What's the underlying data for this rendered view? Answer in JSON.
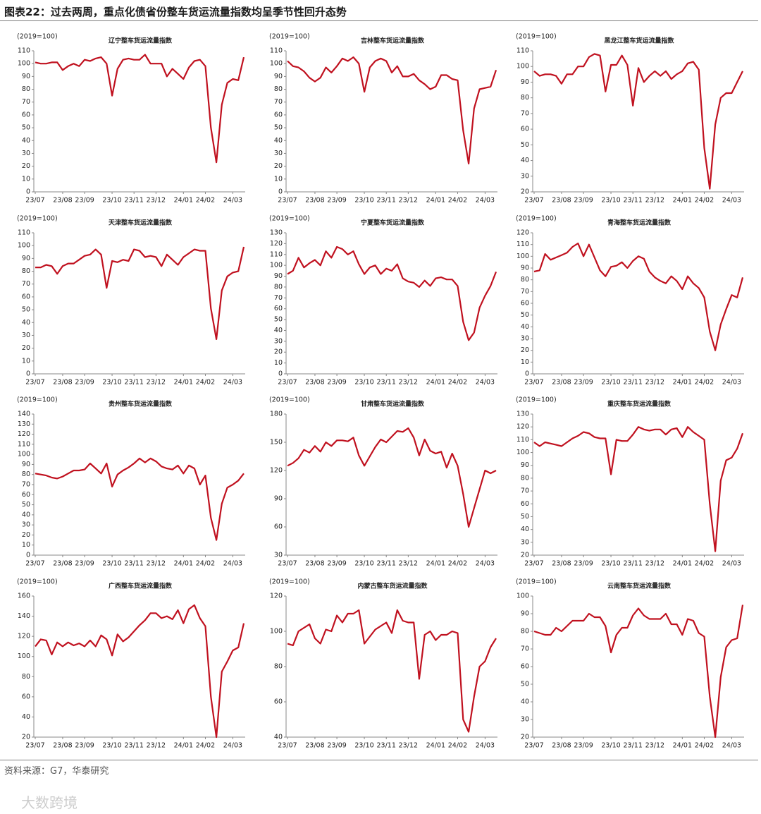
{
  "header": {
    "title": "图表22：过去两周，重点化债省份整车货运流量指数均呈季节性回升态势"
  },
  "footer": {
    "source": "资料来源：G7，华泰研究",
    "watermark": "大数跨境"
  },
  "chart_data": [
    {
      "type": "line",
      "title": "辽宁整车货运流量指数",
      "unit_label": "(2019=100)",
      "color": "#c0111f",
      "categories": [
        "23/07",
        null,
        null,
        null,
        null,
        "23/08",
        null,
        null,
        null,
        "23/09",
        null,
        null,
        null,
        null,
        "23/10",
        null,
        null,
        null,
        "23/11",
        null,
        null,
        null,
        "23/12",
        null,
        null,
        null,
        null,
        "24/01",
        null,
        null,
        null,
        "24/02",
        null,
        null,
        null,
        null,
        "24/03",
        null,
        null
      ],
      "values": [
        101,
        100,
        100,
        101,
        101,
        95,
        98,
        100,
        98,
        103,
        102,
        104,
        105,
        100,
        75,
        96,
        103,
        104,
        103,
        103,
        107,
        100,
        100,
        100,
        90,
        96,
        92,
        88,
        97,
        102,
        103,
        98,
        50,
        23,
        68,
        85,
        88,
        87,
        105
      ],
      "ylim": [
        0,
        110
      ],
      "yticks": [
        0,
        10,
        20,
        30,
        40,
        50,
        60,
        70,
        80,
        90,
        100,
        110
      ]
    },
    {
      "type": "line",
      "title": "吉林整车货运流量指数",
      "unit_label": "(2019=100)",
      "color": "#c0111f",
      "categories": [
        "23/07",
        null,
        null,
        null,
        null,
        "23/08",
        null,
        null,
        null,
        "23/09",
        null,
        null,
        null,
        null,
        "23/10",
        null,
        null,
        null,
        "23/11",
        null,
        null,
        null,
        "23/12",
        null,
        null,
        null,
        null,
        "24/01",
        null,
        null,
        null,
        "24/02",
        null,
        null,
        null,
        null,
        "24/03",
        null,
        null
      ],
      "values": [
        102,
        98,
        97,
        94,
        89,
        86,
        89,
        97,
        93,
        98,
        104,
        102,
        105,
        100,
        78,
        97,
        102,
        104,
        102,
        93,
        98,
        90,
        90,
        92,
        87,
        84,
        80,
        82,
        91,
        91,
        88,
        87,
        48,
        22,
        65,
        80,
        81,
        82,
        95
      ],
      "ylim": [
        0,
        110
      ],
      "yticks": [
        0,
        10,
        20,
        30,
        40,
        50,
        60,
        70,
        80,
        90,
        100,
        110
      ]
    },
    {
      "type": "line",
      "title": "黑龙江整车货运流量指数",
      "unit_label": "(2019=100)",
      "color": "#c0111f",
      "categories": [
        "23/07",
        null,
        null,
        null,
        null,
        "23/08",
        null,
        null,
        null,
        "23/09",
        null,
        null,
        null,
        null,
        "23/10",
        null,
        null,
        null,
        "23/11",
        null,
        null,
        null,
        "23/12",
        null,
        null,
        null,
        null,
        "24/01",
        null,
        null,
        null,
        "24/02",
        null,
        null,
        null,
        null,
        "24/03",
        null,
        null
      ],
      "values": [
        97,
        94,
        95,
        95,
        94,
        89,
        95,
        95,
        100,
        100,
        106,
        108,
        107,
        84,
        101,
        101,
        107,
        101,
        75,
        99,
        90,
        94,
        97,
        94,
        97,
        92,
        95,
        97,
        102,
        103,
        98,
        48,
        22,
        63,
        80,
        83,
        83,
        90,
        97
      ],
      "ylim": [
        20,
        110
      ],
      "yticks": [
        20,
        30,
        40,
        50,
        60,
        70,
        80,
        90,
        100,
        110
      ]
    },
    {
      "type": "line",
      "title": "天津整车货运流量指数",
      "unit_label": "(2019=100)",
      "color": "#c0111f",
      "categories": [
        "23/07",
        null,
        null,
        null,
        null,
        "23/08",
        null,
        null,
        null,
        "23/09",
        null,
        null,
        null,
        null,
        "23/10",
        null,
        null,
        null,
        "23/11",
        null,
        null,
        null,
        "23/12",
        null,
        null,
        null,
        null,
        "24/01",
        null,
        null,
        null,
        "24/02",
        null,
        null,
        null,
        null,
        "24/03",
        null,
        null
      ],
      "values": [
        83,
        83,
        85,
        84,
        78,
        84,
        86,
        86,
        89,
        92,
        93,
        97,
        93,
        67,
        88,
        87,
        89,
        88,
        97,
        96,
        91,
        92,
        91,
        84,
        93,
        89,
        85,
        91,
        94,
        97,
        96,
        96,
        51,
        27,
        65,
        76,
        79,
        80,
        99
      ],
      "ylim": [
        0,
        110
      ],
      "yticks": [
        0,
        10,
        20,
        30,
        40,
        50,
        60,
        70,
        80,
        90,
        100,
        110
      ]
    },
    {
      "type": "line",
      "title": "宁夏整车货运流量指数",
      "unit_label": "(2019=100)",
      "color": "#c0111f",
      "categories": [
        "23/07",
        null,
        null,
        null,
        null,
        "23/08",
        null,
        null,
        null,
        "23/09",
        null,
        null,
        null,
        null,
        "23/10",
        null,
        null,
        null,
        "23/11",
        null,
        null,
        null,
        "23/12",
        null,
        null,
        null,
        null,
        "24/01",
        null,
        null,
        null,
        "24/02",
        null,
        null,
        null,
        null,
        "24/03",
        null,
        null
      ],
      "values": [
        92,
        95,
        107,
        98,
        102,
        105,
        100,
        113,
        107,
        117,
        115,
        110,
        113,
        101,
        92,
        98,
        100,
        92,
        97,
        95,
        101,
        88,
        85,
        84,
        80,
        86,
        81,
        88,
        89,
        87,
        87,
        81,
        48,
        31,
        38,
        61,
        72,
        81,
        94
      ],
      "ylim": [
        0,
        130
      ],
      "yticks": [
        0,
        10,
        20,
        30,
        40,
        50,
        60,
        70,
        80,
        90,
        100,
        110,
        120,
        130
      ]
    },
    {
      "type": "line",
      "title": "青海整车货运流量指数",
      "unit_label": "(2019=100)",
      "color": "#c0111f",
      "categories": [
        "23/07",
        null,
        null,
        null,
        null,
        "23/08",
        null,
        null,
        null,
        "23/09",
        null,
        null,
        null,
        null,
        "23/10",
        null,
        null,
        null,
        "23/11",
        null,
        null,
        null,
        "23/12",
        null,
        null,
        null,
        null,
        "24/01",
        null,
        null,
        null,
        "24/02",
        null,
        null,
        null,
        null,
        "24/03",
        null,
        null
      ],
      "values": [
        87,
        88,
        102,
        97,
        99,
        101,
        103,
        108,
        111,
        100,
        110,
        99,
        88,
        83,
        91,
        92,
        95,
        90,
        96,
        100,
        98,
        87,
        82,
        79,
        77,
        83,
        79,
        72,
        83,
        77,
        73,
        65,
        36,
        20,
        42,
        55,
        67,
        65,
        82
      ],
      "ylim": [
        0,
        120
      ],
      "yticks": [
        0,
        10,
        20,
        30,
        40,
        50,
        60,
        70,
        80,
        90,
        100,
        110,
        120
      ]
    },
    {
      "type": "line",
      "title": "贵州整车货运流量指数",
      "unit_label": "(2019=100)",
      "color": "#c0111f",
      "categories": [
        "23/07",
        null,
        null,
        null,
        null,
        "23/08",
        null,
        null,
        null,
        "23/09",
        null,
        null,
        null,
        null,
        "23/10",
        null,
        null,
        null,
        "23/11",
        null,
        null,
        null,
        "23/12",
        null,
        null,
        null,
        null,
        "24/01",
        null,
        null,
        null,
        "24/02",
        null,
        null,
        null,
        null,
        "24/03",
        null,
        null
      ],
      "values": [
        81,
        80,
        79,
        77,
        76,
        78,
        81,
        84,
        84,
        85,
        91,
        86,
        81,
        91,
        68,
        80,
        84,
        87,
        91,
        96,
        92,
        96,
        93,
        88,
        86,
        85,
        89,
        81,
        89,
        86,
        70,
        79,
        37,
        15,
        51,
        67,
        70,
        74,
        81
      ],
      "ylim": [
        0,
        140
      ],
      "yticks": [
        0,
        10,
        20,
        30,
        40,
        50,
        60,
        70,
        80,
        90,
        100,
        110,
        120,
        130,
        140
      ]
    },
    {
      "type": "line",
      "title": "甘肃整车货运流量指数",
      "unit_label": "(2019=100)",
      "color": "#c0111f",
      "categories": [
        "23/07",
        null,
        null,
        null,
        null,
        "23/08",
        null,
        null,
        null,
        "23/09",
        null,
        null,
        null,
        null,
        "23/10",
        null,
        null,
        null,
        "23/11",
        null,
        null,
        null,
        "23/12",
        null,
        null,
        null,
        null,
        "24/01",
        null,
        null,
        null,
        "24/02",
        null,
        null,
        null,
        null,
        "24/03",
        null,
        null
      ],
      "values": [
        125,
        128,
        133,
        142,
        139,
        146,
        140,
        150,
        146,
        152,
        152,
        151,
        155,
        136,
        125,
        135,
        145,
        153,
        150,
        156,
        162,
        161,
        165,
        155,
        136,
        153,
        141,
        138,
        140,
        123,
        138,
        125,
        95,
        60,
        80,
        100,
        120,
        117,
        120
      ],
      "ylim": [
        30,
        180
      ],
      "yticks": [
        30,
        60,
        90,
        120,
        150,
        180
      ]
    },
    {
      "type": "line",
      "title": "重庆整车货运流量指数",
      "unit_label": "(2019=100)",
      "color": "#c0111f",
      "categories": [
        "23/07",
        null,
        null,
        null,
        null,
        "23/08",
        null,
        null,
        null,
        "23/09",
        null,
        null,
        null,
        null,
        "23/10",
        null,
        null,
        null,
        "23/11",
        null,
        null,
        null,
        "23/12",
        null,
        null,
        null,
        null,
        "24/01",
        null,
        null,
        null,
        "24/02",
        null,
        null,
        null,
        null,
        "24/03",
        null,
        null
      ],
      "values": [
        108,
        105,
        108,
        107,
        106,
        105,
        108,
        111,
        113,
        116,
        115,
        112,
        111,
        111,
        83,
        110,
        109,
        109,
        114,
        120,
        118,
        117,
        118,
        118,
        114,
        118,
        119,
        112,
        120,
        116,
        113,
        110,
        60,
        23,
        78,
        94,
        96,
        103,
        115
      ],
      "ylim": [
        20,
        130
      ],
      "yticks": [
        20,
        30,
        40,
        50,
        60,
        70,
        80,
        90,
        100,
        110,
        120,
        130
      ]
    },
    {
      "type": "line",
      "title": "广西整车货运流量指数",
      "unit_label": "(2019=100)",
      "color": "#c0111f",
      "categories": [
        "23/07",
        null,
        null,
        null,
        null,
        "23/08",
        null,
        null,
        null,
        "23/09",
        null,
        null,
        null,
        null,
        "23/10",
        null,
        null,
        null,
        "23/11",
        null,
        null,
        null,
        "23/12",
        null,
        null,
        null,
        null,
        "24/01",
        null,
        null,
        null,
        "24/02",
        null,
        null,
        null,
        null,
        "24/03",
        null,
        null
      ],
      "values": [
        110,
        117,
        116,
        102,
        114,
        110,
        114,
        111,
        113,
        110,
        116,
        110,
        121,
        117,
        101,
        122,
        115,
        119,
        125,
        131,
        136,
        143,
        143,
        138,
        140,
        137,
        146,
        133,
        147,
        151,
        138,
        130,
        60,
        20,
        85,
        95,
        106,
        109,
        133
      ],
      "ylim": [
        20,
        160
      ],
      "yticks": [
        20,
        40,
        60,
        80,
        100,
        120,
        140,
        160
      ]
    },
    {
      "type": "line",
      "title": "内蒙古整车货运流量指数",
      "unit_label": "(2019=100)",
      "color": "#c0111f",
      "categories": [
        "23/07",
        null,
        null,
        null,
        null,
        "23/08",
        null,
        null,
        null,
        "23/09",
        null,
        null,
        null,
        null,
        "23/10",
        null,
        null,
        null,
        "23/11",
        null,
        null,
        null,
        "23/12",
        null,
        null,
        null,
        null,
        "24/01",
        null,
        null,
        null,
        "24/02",
        null,
        null,
        null,
        null,
        "24/03",
        null,
        null
      ],
      "values": [
        93,
        92,
        100,
        102,
        104,
        96,
        93,
        101,
        100,
        109,
        105,
        110,
        110,
        112,
        93,
        97,
        101,
        103,
        105,
        99,
        112,
        106,
        105,
        105,
        73,
        98,
        100,
        95,
        98,
        98,
        100,
        99,
        50,
        43,
        63,
        80,
        83,
        91,
        96
      ],
      "ylim": [
        40,
        120
      ],
      "yticks": [
        40,
        60,
        80,
        100,
        120
      ]
    },
    {
      "type": "line",
      "title": "云南整车货运流量指数",
      "unit_label": "(2019=100)",
      "color": "#c0111f",
      "categories": [
        "23/07",
        null,
        null,
        null,
        null,
        "23/08",
        null,
        null,
        null,
        "23/09",
        null,
        null,
        null,
        null,
        "23/10",
        null,
        null,
        null,
        "23/11",
        null,
        null,
        null,
        "23/12",
        null,
        null,
        null,
        null,
        "24/01",
        null,
        null,
        null,
        "24/02",
        null,
        null,
        null,
        null,
        "24/03",
        null,
        null
      ],
      "values": [
        80,
        79,
        78,
        78,
        82,
        80,
        83,
        86,
        86,
        86,
        90,
        88,
        88,
        83,
        68,
        78,
        82,
        82,
        89,
        93,
        89,
        87,
        87,
        87,
        90,
        84,
        84,
        78,
        87,
        86,
        79,
        77,
        43,
        20,
        54,
        71,
        75,
        76,
        95
      ],
      "ylim": [
        20,
        100
      ],
      "yticks": [
        20,
        30,
        40,
        50,
        60,
        70,
        80,
        90,
        100
      ]
    }
  ]
}
